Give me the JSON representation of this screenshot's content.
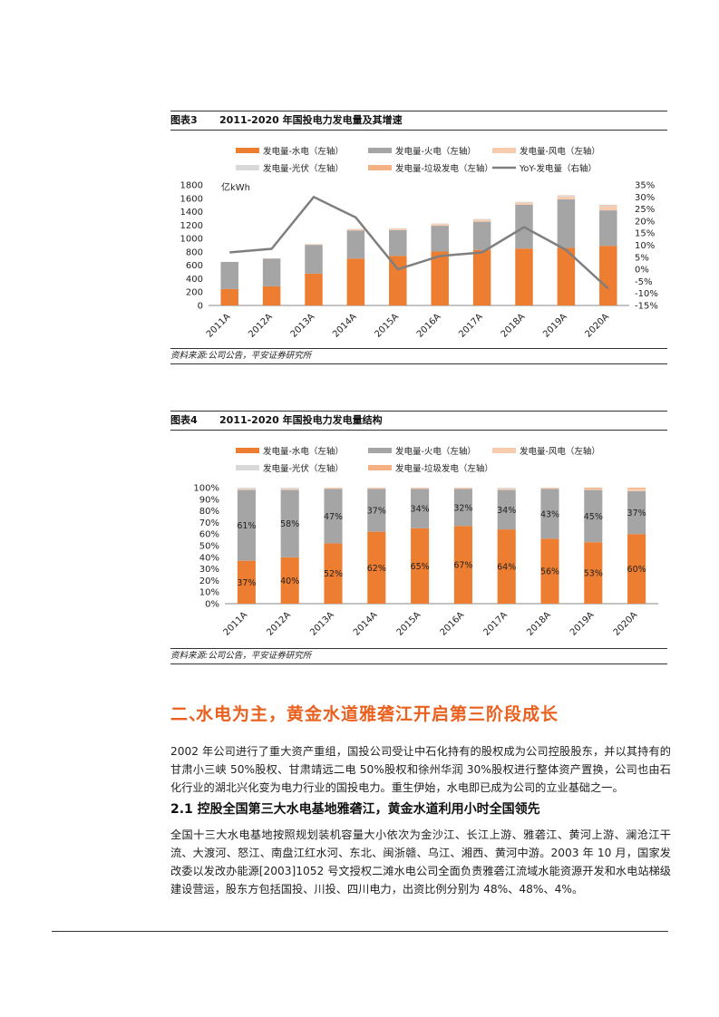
{
  "fig3": {
    "label": "图表3",
    "title": "2011-2020 年国投电力发电量及其增速",
    "source": "资料来源:公司公告，平安证券研究所"
  },
  "fig4": {
    "label": "图表4",
    "title": "2011-2020 年国投电力发电量结构",
    "source": "资料来源:公司公告，平安证券研究所"
  },
  "section": {
    "number": "二、",
    "title": "水电为主，黄金水道雅砻江开启第三阶段成长",
    "para1": "2002 年公司进行了重大资产重组，国投公司受让中石化持有的股权成为公司控股股东，并以其持有的甘肃小三峡 50%股权、甘肃靖远二电 50%股权和徐州华润 30%股权进行整体资产置换，公司也由石化行业的湖北兴化变为电力行业的国投电力。重生伊始，水电即已成为公司的立业基础之一。",
    "sub_title": "2.1 控股全国第三大水电基地雅砻江，黄金水道利用小时全国领先",
    "para2": "全国十三大水电基地按照规划装机容量大小依次为金沙江、长江上游、雅砻江、黄河上游、澜沧江干流、大渡河、怒江、南盘江红水河、东北、闽浙赣、乌江、湘西、黄河中游。2003 年 10 月，国家发改委以发改办能源[2003]1052 号文授权二滩水电公司全面负责雅砻江流域水能资源开发和水电站梯级建设营运，股东方包括国投、川投、四川电力，出资比例分别为 48%、48%、4%。"
  },
  "chart_data": [
    {
      "type": "bar",
      "stacked": true,
      "categories": [
        "2011A",
        "2012A",
        "2013A",
        "2014A",
        "2015A",
        "2016A",
        "2017A",
        "2018A",
        "2019A",
        "2020A"
      ],
      "series": [
        {
          "name": "发电量-水电（左轴）",
          "color": "#ed7d31",
          "values": [
            245,
            285,
            475,
            700,
            740,
            805,
            830,
            850,
            860,
            890
          ]
        },
        {
          "name": "发电量-火电（左轴）",
          "color": "#a5a5a5",
          "values": [
            405,
            415,
            430,
            420,
            385,
            385,
            420,
            655,
            725,
            530
          ]
        },
        {
          "name": "发电量-风电（左轴）",
          "color": "#f8cbad",
          "values": [
            2,
            3,
            10,
            20,
            20,
            25,
            30,
            30,
            40,
            55
          ]
        },
        {
          "name": "发电量-光伏（左轴）",
          "color": "#d9d9d9",
          "values": [
            0,
            0,
            2,
            4,
            8,
            10,
            12,
            14,
            16,
            18
          ]
        },
        {
          "name": "发电量-垃圾发电（左轴）",
          "color": "#f4b183",
          "values": [
            0,
            0,
            0,
            0,
            0,
            0,
            0,
            0,
            5,
            10
          ]
        }
      ],
      "line": {
        "name": "YoY-发电量（右轴）",
        "color": "#7f7f7f",
        "values": [
          7,
          8.5,
          30,
          21.5,
          0,
          5.5,
          7,
          17.5,
          8,
          -8
        ]
      },
      "ylabel": "亿kWh",
      "ylim": [
        0,
        1800
      ],
      "yticks": [
        "0",
        "200",
        "400",
        "600",
        "800",
        "1000",
        "1200",
        "1400",
        "1600",
        "1800"
      ],
      "y2lim": [
        -15,
        35
      ],
      "y2ticks": [
        "-15%",
        "-10%",
        "-5%",
        "0%",
        "5%",
        "10%",
        "15%",
        "20%",
        "25%",
        "30%",
        "35%"
      ],
      "legend": "top"
    },
    {
      "type": "bar",
      "stacked": true,
      "percent": true,
      "categories": [
        "2011A",
        "2012A",
        "2013A",
        "2014A",
        "2015A",
        "2016A",
        "2017A",
        "2018A",
        "2019A",
        "2020A"
      ],
      "series": [
        {
          "name": "发电量-水电（左轴）",
          "color": "#ed7d31",
          "values": [
            37,
            40,
            52,
            62,
            65,
            67,
            64,
            56,
            53,
            60
          ],
          "labels": [
            "37%",
            "40%",
            "52%",
            "62%",
            "65%",
            "67%",
            "64%",
            "56%",
            "53%",
            "60%"
          ]
        },
        {
          "name": "发电量-火电（左轴）",
          "color": "#a5a5a5",
          "values": [
            61,
            58,
            47,
            37,
            34,
            32,
            34,
            43,
            45,
            37
          ],
          "labels": [
            "61%",
            "58%",
            "47%",
            "37%",
            "34%",
            "32%",
            "34%",
            "43%",
            "45%",
            "37%"
          ]
        },
        {
          "name": "发电量-风电（左轴）",
          "color": "#f8cbad",
          "values": [
            1,
            1,
            1,
            1,
            1,
            1,
            1,
            1,
            1,
            2
          ]
        },
        {
          "name": "发电量-光伏（左轴）",
          "color": "#d9d9d9",
          "values": [
            1,
            1,
            0,
            0,
            0,
            0,
            1,
            0,
            0,
            0
          ]
        },
        {
          "name": "发电量-垃圾发电（左轴）",
          "color": "#f4b183",
          "values": [
            0,
            0,
            0,
            0,
            0,
            0,
            0,
            0,
            1,
            1
          ]
        }
      ],
      "ylim": [
        0,
        100
      ],
      "yticks": [
        "0%",
        "10%",
        "20%",
        "30%",
        "40%",
        "50%",
        "60%",
        "70%",
        "80%",
        "90%",
        "100%"
      ],
      "legend": "top"
    }
  ]
}
